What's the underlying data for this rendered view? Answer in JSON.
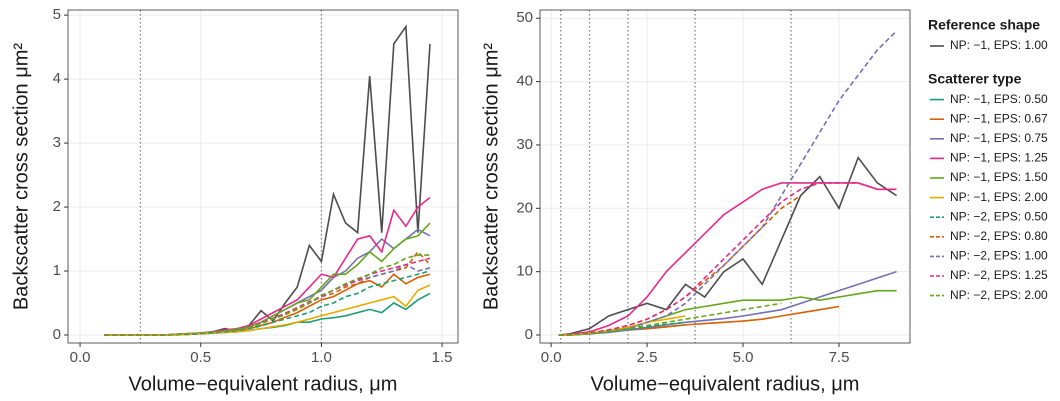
{
  "chart_data": [
    {
      "type": "line",
      "xlabel": "Volume−equivalent radius, μm",
      "ylabel": "Backscatter cross section μm²",
      "xlim": [
        -0.05,
        1.566
      ],
      "ylim": [
        -0.125,
        5.08
      ],
      "xticks": [
        {
          "value": 0,
          "label": "0.0"
        },
        {
          "value": 0.5,
          "label": "0.5"
        },
        {
          "value": 1,
          "label": "1.0"
        },
        {
          "value": 1.5,
          "label": "1.5"
        }
      ],
      "yticks": [
        0,
        1,
        2,
        3,
        4,
        5
      ],
      "grid": true,
      "vlines": [
        0.25,
        1
      ],
      "x": [
        0.1,
        0.15,
        0.2,
        0.25,
        0.3,
        0.35,
        0.4,
        0.45,
        0.5,
        0.55,
        0.6,
        0.65,
        0.7,
        0.75,
        0.8,
        0.85,
        0.9,
        0.95,
        1.0,
        1.05,
        1.1,
        1.15,
        1.2,
        1.25,
        1.3,
        1.35,
        1.4,
        1.45
      ],
      "series": [
        {
          "name": "NP: −1, EPS: 1.00",
          "group": "Reference shape",
          "color": "#4d4d4d",
          "dash": false,
          "values": [
            0,
            0,
            0,
            0,
            0,
            0,
            0.01,
            0.02,
            0.03,
            0.05,
            0.1,
            0.06,
            0.15,
            0.38,
            0.22,
            0.5,
            0.75,
            1.4,
            1.15,
            2.2,
            1.75,
            1.6,
            4.05,
            1.6,
            4.55,
            4.82,
            1.6,
            4.55
          ]
        },
        {
          "name": "NP: −1, EPS: 0.50",
          "group": "Scatterer type",
          "color": "#1b9e77",
          "dash": false,
          "values": [
            0,
            0,
            0,
            0,
            0,
            0,
            0,
            0.01,
            0.02,
            0.03,
            0.04,
            0.05,
            0.07,
            0.1,
            0.12,
            0.15,
            0.2,
            0.2,
            0.25,
            0.27,
            0.3,
            0.35,
            0.4,
            0.35,
            0.5,
            0.4,
            0.55,
            0.65
          ]
        },
        {
          "name": "NP: −1, EPS: 0.67",
          "group": "Scatterer type",
          "color": "#d95f02",
          "dash": false,
          "values": [
            0,
            0,
            0,
            0,
            0,
            0,
            0.01,
            0.01,
            0.02,
            0.03,
            0.05,
            0.07,
            0.1,
            0.15,
            0.2,
            0.28,
            0.35,
            0.45,
            0.55,
            0.6,
            0.7,
            0.8,
            0.85,
            0.75,
            0.95,
            0.8,
            0.9,
            0.95
          ]
        },
        {
          "name": "NP: −1, EPS: 0.75",
          "group": "Scatterer type",
          "color": "#7570b3",
          "dash": false,
          "values": [
            0,
            0,
            0,
            0,
            0,
            0,
            0.01,
            0.02,
            0.03,
            0.04,
            0.06,
            0.09,
            0.13,
            0.2,
            0.3,
            0.4,
            0.5,
            0.6,
            0.7,
            0.9,
            1.0,
            1.2,
            1.3,
            1.5,
            1.35,
            1.5,
            1.65,
            1.55
          ]
        },
        {
          "name": "NP: −1, EPS: 1.25",
          "group": "Scatterer type",
          "color": "#e7298a",
          "dash": false,
          "values": [
            0,
            0,
            0,
            0,
            0,
            0,
            0.01,
            0.02,
            0.03,
            0.05,
            0.08,
            0.1,
            0.15,
            0.25,
            0.35,
            0.45,
            0.55,
            0.75,
            0.95,
            0.9,
            1.2,
            1.5,
            1.55,
            1.3,
            1.95,
            1.7,
            2.0,
            2.15
          ]
        },
        {
          "name": "NP: −1, EPS: 1.50",
          "group": "Scatterer type",
          "color": "#66a61e",
          "dash": false,
          "values": [
            0,
            0,
            0,
            0,
            0,
            0,
            0.01,
            0.02,
            0.03,
            0.04,
            0.06,
            0.1,
            0.13,
            0.2,
            0.3,
            0.4,
            0.5,
            0.55,
            0.75,
            0.95,
            0.95,
            1.1,
            1.3,
            1.15,
            1.35,
            1.5,
            1.55,
            1.75
          ]
        },
        {
          "name": "NP: −1, EPS: 2.00",
          "group": "Scatterer type",
          "color": "#e6ab02",
          "dash": false,
          "values": [
            0,
            0,
            0,
            0,
            0,
            0,
            0,
            0.01,
            0.02,
            0.03,
            0.04,
            0.05,
            0.07,
            0.1,
            0.13,
            0.16,
            0.2,
            0.25,
            0.3,
            0.35,
            0.4,
            0.45,
            0.5,
            0.55,
            0.6,
            0.45,
            0.7,
            0.78
          ]
        },
        {
          "name": "NP: −2, EPS: 0.50",
          "group": "Scatterer type",
          "color": "#1b9e77",
          "dash": true,
          "values": [
            0,
            0,
            0,
            0,
            0,
            0,
            0.01,
            0.01,
            0.02,
            0.03,
            0.05,
            0.07,
            0.1,
            0.14,
            0.2,
            0.25,
            0.3,
            0.35,
            0.45,
            0.5,
            0.6,
            0.65,
            0.75,
            0.8,
            0.85,
            0.9,
            0.95,
            1.0
          ]
        },
        {
          "name": "NP: −2, EPS: 0.80",
          "group": "Scatterer type",
          "color": "#d95f02",
          "dash": true,
          "values": [
            0,
            0,
            0,
            0,
            0,
            0,
            0.01,
            0.02,
            0.03,
            0.04,
            0.06,
            0.08,
            0.12,
            0.18,
            0.25,
            0.32,
            0.4,
            0.5,
            0.6,
            0.65,
            0.75,
            0.8,
            0.9,
            0.95,
            1.0,
            1.05,
            1.3,
            1.1
          ]
        },
        {
          "name": "NP: −2, EPS: 1.00",
          "group": "Scatterer type",
          "color": "#7570b3",
          "dash": true,
          "values": [
            0,
            0,
            0,
            0,
            0,
            0,
            0.01,
            0.02,
            0.03,
            0.04,
            0.06,
            0.09,
            0.13,
            0.19,
            0.26,
            0.33,
            0.42,
            0.5,
            0.6,
            0.7,
            0.8,
            0.85,
            0.9,
            0.95,
            1.0,
            1.1,
            1.0,
            1.05
          ]
        },
        {
          "name": "NP: −2, EPS: 1.25",
          "group": "Scatterer type",
          "color": "#e7298a",
          "dash": true,
          "values": [
            0,
            0,
            0,
            0,
            0,
            0,
            0.01,
            0.02,
            0.03,
            0.04,
            0.06,
            0.09,
            0.13,
            0.19,
            0.26,
            0.34,
            0.43,
            0.52,
            0.6,
            0.7,
            0.78,
            0.85,
            0.95,
            1.0,
            1.05,
            1.1,
            1.15,
            1.2
          ]
        },
        {
          "name": "NP: −2, EPS: 2.00",
          "group": "Scatterer type",
          "color": "#66a61e",
          "dash": true,
          "values": [
            0,
            0,
            0,
            0,
            0,
            0,
            0.01,
            0.02,
            0.03,
            0.04,
            0.06,
            0.08,
            0.12,
            0.18,
            0.25,
            0.32,
            0.42,
            0.5,
            0.62,
            0.7,
            0.8,
            0.88,
            0.95,
            1.05,
            1.1,
            1.2,
            1.25,
            1.25
          ]
        }
      ]
    },
    {
      "type": "line",
      "xlabel": "Volume−equivalent radius, μm",
      "ylabel": "Backscatter cross section μm²",
      "xlim": [
        -0.29,
        9.35
      ],
      "ylim": [
        -1.26,
        51.3
      ],
      "xticks": [
        {
          "value": 0,
          "label": "0.0"
        },
        {
          "value": 2.5,
          "label": "2.5"
        },
        {
          "value": 5,
          "label": "5.0"
        },
        {
          "value": 7.5,
          "label": "7.5"
        }
      ],
      "yticks": [
        0,
        10,
        20,
        30,
        40,
        50
      ],
      "grid": true,
      "vlines": [
        0.25,
        1,
        2,
        3.75,
        6.25
      ],
      "x": [
        0.2,
        0.5,
        1,
        1.5,
        2,
        2.5,
        3,
        3.5,
        4,
        4.5,
        5,
        5.5,
        6,
        6.5,
        7,
        7.5,
        8,
        8.5,
        9
      ],
      "series": [
        {
          "name": "NP: −1, EPS: 1.00",
          "group": "Reference shape",
          "color": "#4d4d4d",
          "dash": false,
          "values": [
            0,
            0.2,
            1,
            3,
            4,
            5,
            4,
            8,
            6,
            10,
            12,
            8,
            15,
            22,
            25,
            20,
            28,
            24,
            22
          ]
        },
        {
          "name": "NP: −1, EPS: 0.50",
          "group": "Scatterer type",
          "color": "#1b9e77",
          "dash": false,
          "values": [
            0,
            0,
            0.2,
            0.5,
            0.8,
            1,
            1.3,
            1.6,
            null,
            null,
            null,
            null,
            null,
            null,
            null,
            null,
            null,
            null,
            null
          ]
        },
        {
          "name": "NP: −1, EPS: 0.67",
          "group": "Scatterer type",
          "color": "#d95f02",
          "dash": false,
          "values": [
            0,
            0,
            0.2,
            0.5,
            0.8,
            1,
            1.3,
            1.6,
            1.8,
            2,
            2.2,
            2.5,
            3,
            3.5,
            4,
            4.5,
            null,
            null,
            null
          ]
        },
        {
          "name": "NP: −1, EPS: 0.75",
          "group": "Scatterer type",
          "color": "#7570b3",
          "dash": false,
          "values": [
            0,
            0,
            0.2,
            0.4,
            0.8,
            1.2,
            1.6,
            2,
            2.3,
            2.6,
            3,
            3.5,
            4,
            5,
            6,
            7,
            8,
            9,
            10
          ]
        },
        {
          "name": "NP: −1, EPS: 1.25",
          "group": "Scatterer type",
          "color": "#e7298a",
          "dash": false,
          "values": [
            0,
            0.1,
            0.5,
            1.5,
            3,
            6,
            10,
            13,
            16,
            19,
            21,
            23,
            24,
            24,
            24,
            24,
            24,
            23,
            23
          ]
        },
        {
          "name": "NP: −1, EPS: 1.50",
          "group": "Scatterer type",
          "color": "#66a61e",
          "dash": false,
          "values": [
            0,
            0,
            0.2,
            0.5,
            1,
            2,
            3,
            4,
            4.5,
            5,
            5.5,
            5.5,
            5.5,
            6,
            5.5,
            6,
            6.5,
            7,
            7
          ]
        },
        {
          "name": "NP: −1, EPS: 2.00",
          "group": "Scatterer type",
          "color": "#e6ab02",
          "dash": false,
          "values": [
            0,
            0,
            0.3,
            0.7,
            1.2,
            2,
            2.5,
            3,
            null,
            null,
            null,
            null,
            null,
            null,
            null,
            null,
            null,
            null,
            null
          ]
        },
        {
          "name": "NP: −2, EPS: 0.50",
          "group": "Scatterer type",
          "color": "#1b9e77",
          "dash": true,
          "values": [
            0,
            0,
            0.2,
            0.5,
            0.9,
            1.3,
            1.7,
            2,
            null,
            null,
            null,
            null,
            null,
            null,
            null,
            null,
            null,
            null,
            null
          ]
        },
        {
          "name": "NP: −2, EPS: 0.80",
          "group": "Scatterer type",
          "color": "#d95f02",
          "dash": true,
          "values": [
            0,
            0.05,
            0.3,
            0.8,
            1.5,
            2.5,
            4,
            6,
            8.5,
            11,
            14,
            17,
            20,
            22,
            null,
            null,
            null,
            null,
            null
          ]
        },
        {
          "name": "NP: −2, EPS: 1.00",
          "group": "Scatterer type",
          "color": "#7570b3",
          "dash": true,
          "values": [
            0,
            0,
            0.2,
            0.5,
            1,
            2,
            3,
            5,
            8,
            11,
            14,
            17,
            22,
            27,
            32,
            37,
            41,
            45,
            48
          ]
        },
        {
          "name": "NP: −2, EPS: 1.25",
          "group": "Scatterer type",
          "color": "#e7298a",
          "dash": true,
          "values": [
            0,
            0.05,
            0.3,
            0.8,
            1.5,
            2.5,
            4,
            6,
            9,
            12,
            15,
            18,
            21,
            23,
            24,
            24,
            24,
            23,
            23
          ]
        },
        {
          "name": "NP: −2, EPS: 2.00",
          "group": "Scatterer type",
          "color": "#66a61e",
          "dash": true,
          "values": [
            0,
            0,
            0.2,
            0.6,
            1,
            1.5,
            2,
            2.5,
            3,
            3.5,
            4,
            4.5,
            5,
            null,
            null,
            null,
            null,
            null,
            null
          ]
        }
      ]
    }
  ]
}
